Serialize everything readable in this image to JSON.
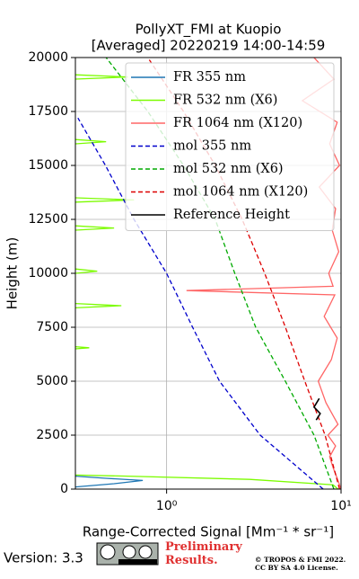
{
  "chart_data": {
    "type": "line",
    "title": "PollyXT_FMI at Kuopio",
    "subtitle": "[Averaged] 20220219 14:00-14:59",
    "x_label": "Range-Corrected Signal [Mm⁻¹ * sr⁻¹]",
    "y_label": "Height (m)",
    "xscale": "log",
    "grid": true,
    "legend": "upper right",
    "xlim": [
      0.3,
      10
    ],
    "ylim": [
      0,
      20000
    ],
    "xticks": [
      {
        "value": 1,
        "label": "10⁰"
      },
      {
        "value": 10,
        "label": "10¹"
      }
    ],
    "yticks": [
      0,
      2500,
      5000,
      7500,
      10000,
      12500,
      15000,
      17500,
      20000
    ],
    "series": [
      {
        "name": "FR 355 nm",
        "color": "#1f77b4",
        "linestyle": "solid",
        "x": [
          0.3,
          0.5,
          0.73,
          0.45,
          0.3
        ],
        "y": [
          100,
          250,
          400,
          500,
          600
        ]
      },
      {
        "name": "FR 532 nm (X6)",
        "color": "#7cfc00",
        "linestyle": "solid",
        "x": [
          9.6,
          9.0,
          3,
          0.6,
          0.3,
          null,
          0.3,
          0.36,
          0.3,
          null,
          0.3,
          0.55,
          0.3,
          null,
          0.3,
          0.4,
          0.3,
          null,
          0.3,
          0.5,
          0.3,
          null,
          0.3,
          0.65,
          0.3,
          null,
          0.3,
          0.45,
          0.3,
          null,
          0.3,
          0.6,
          0.3
        ],
        "y": [
          0,
          200,
          450,
          600,
          650,
          null,
          6500,
          6550,
          6600,
          null,
          8400,
          8500,
          8600,
          null,
          10000,
          10100,
          10200,
          null,
          12000,
          12100,
          12200,
          null,
          13300,
          13400,
          13500,
          null,
          16000,
          16100,
          16200,
          null,
          19000,
          19100,
          19200
        ]
      },
      {
        "name": "FR 1064 nm (X120)",
        "color": "#ff6666",
        "linestyle": "solid",
        "x": [
          10,
          9.5,
          9.0,
          8.6,
          9.3,
          8.4,
          9.6,
          8.2,
          7.4,
          8.8,
          9.5,
          8.0,
          9.2,
          1.3,
          9.0,
          8.5,
          9.7,
          8.9,
          9.3,
          7.5,
          9.8,
          8.6,
          9.5,
          6.0,
          9.1,
          7.0
        ],
        "y": [
          0,
          500,
          1000,
          1500,
          2000,
          2500,
          3000,
          4000,
          5000,
          6000,
          7000,
          8000,
          9000,
          9200,
          9400,
          10000,
          11000,
          12000,
          13000,
          14000,
          15000,
          16000,
          17000,
          18000,
          19000,
          20000
        ]
      },
      {
        "name": "mol 355 nm",
        "color": "#0000cc",
        "linestyle": "dashed",
        "x": [
          7.9,
          3.44,
          2.01,
          1.41,
          1.0,
          0.65,
          0.446,
          0.31
        ],
        "y": [
          0,
          2500,
          5000,
          7500,
          10000,
          12500,
          15000,
          17200
        ]
      },
      {
        "name": "mol 532 nm (X6)",
        "color": "#00aa00",
        "linestyle": "dashed",
        "x": [
          9.1,
          7.0,
          4.79,
          3.24,
          2.46,
          1.9,
          1.25,
          0.78,
          0.45
        ],
        "y": [
          0,
          2500,
          5000,
          7500,
          10000,
          12500,
          15000,
          17500,
          20000
        ]
      },
      {
        "name": "mol 1064 nm (X120)",
        "color": "#dd0000",
        "linestyle": "dashed",
        "x": [
          9.8,
          8.1,
          6.2,
          4.8,
          3.65,
          2.71,
          1.9,
          1.25,
          0.78
        ],
        "y": [
          0,
          2500,
          5000,
          7500,
          10000,
          12500,
          15000,
          17500,
          20000
        ]
      },
      {
        "name": "Reference Height",
        "color": "#000000",
        "linestyle": "solid",
        "x": [
          7.2,
          7.6,
          7.0,
          7.5
        ],
        "y": [
          3200,
          3500,
          3800,
          4200
        ]
      }
    ]
  },
  "footer": {
    "version": "Version: 3.3",
    "preliminary": "Preliminary Results.",
    "copyright": "© TROPOS & FMI 2022.",
    "license": "CC BY SA 4.0 License."
  }
}
